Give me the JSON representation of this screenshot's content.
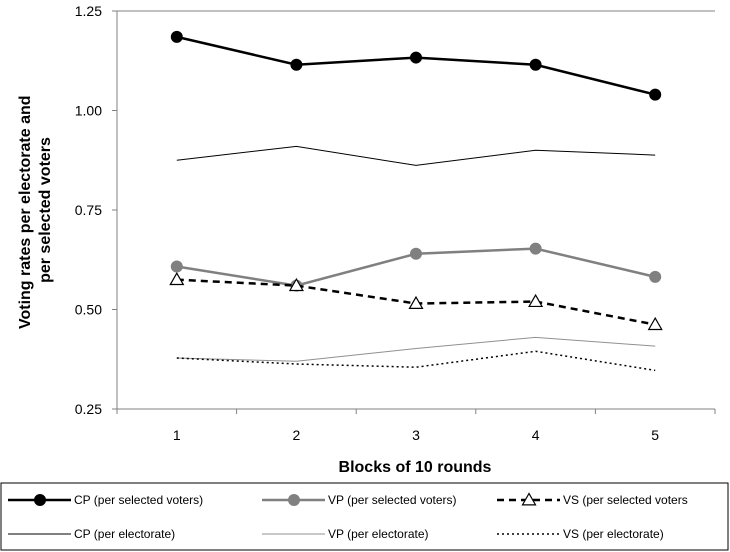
{
  "chart_data": {
    "type": "line",
    "title": "",
    "xlabel": "Blocks of 10 rounds",
    "ylabel_lines": [
      "Voting rates per electorate and",
      "per selected voters"
    ],
    "x": [
      1,
      2,
      3,
      4,
      5
    ],
    "x_tick_labels": [
      "1",
      "2",
      "3",
      "4",
      "5"
    ],
    "ylim": [
      0.25,
      1.25
    ],
    "y_ticks": [
      0.25,
      0.5,
      0.75,
      1.0,
      1.25
    ],
    "y_tick_labels": [
      "0.25",
      "0.50",
      "0.75",
      "1.00",
      "1.25"
    ],
    "grid": false,
    "legend_position": "bottom",
    "series": [
      {
        "name": "CP (per selected voters)",
        "values": [
          1.185,
          1.115,
          1.133,
          1.115,
          1.04
        ],
        "color": "#000000",
        "line": "solid",
        "width": 2.5,
        "marker": "filled-circle"
      },
      {
        "name": "VP (per selected voters)",
        "values": [
          0.608,
          0.56,
          0.64,
          0.653,
          0.582
        ],
        "color": "#808080",
        "line": "solid",
        "width": 2.5,
        "marker": "filled-circle"
      },
      {
        "name": "VS (per selected voters",
        "values": [
          0.575,
          0.56,
          0.515,
          0.52,
          0.462
        ],
        "color": "#000000",
        "line": "dashed",
        "width": 2.5,
        "marker": "open-triangle"
      },
      {
        "name": "CP (per electorate)",
        "values": [
          0.875,
          0.91,
          0.862,
          0.9,
          0.888
        ],
        "color": "#000000",
        "line": "solid",
        "width": 1,
        "marker": "none"
      },
      {
        "name": "VP (per electorate)",
        "values": [
          0.378,
          0.37,
          0.402,
          0.43,
          0.408
        ],
        "color": "#909090",
        "line": "solid",
        "width": 1,
        "marker": "none"
      },
      {
        "name": "VS (per electorate)",
        "values": [
          0.378,
          0.363,
          0.355,
          0.395,
          0.347
        ],
        "color": "#000000",
        "line": "dotted",
        "width": 1.5,
        "marker": "none"
      }
    ]
  }
}
